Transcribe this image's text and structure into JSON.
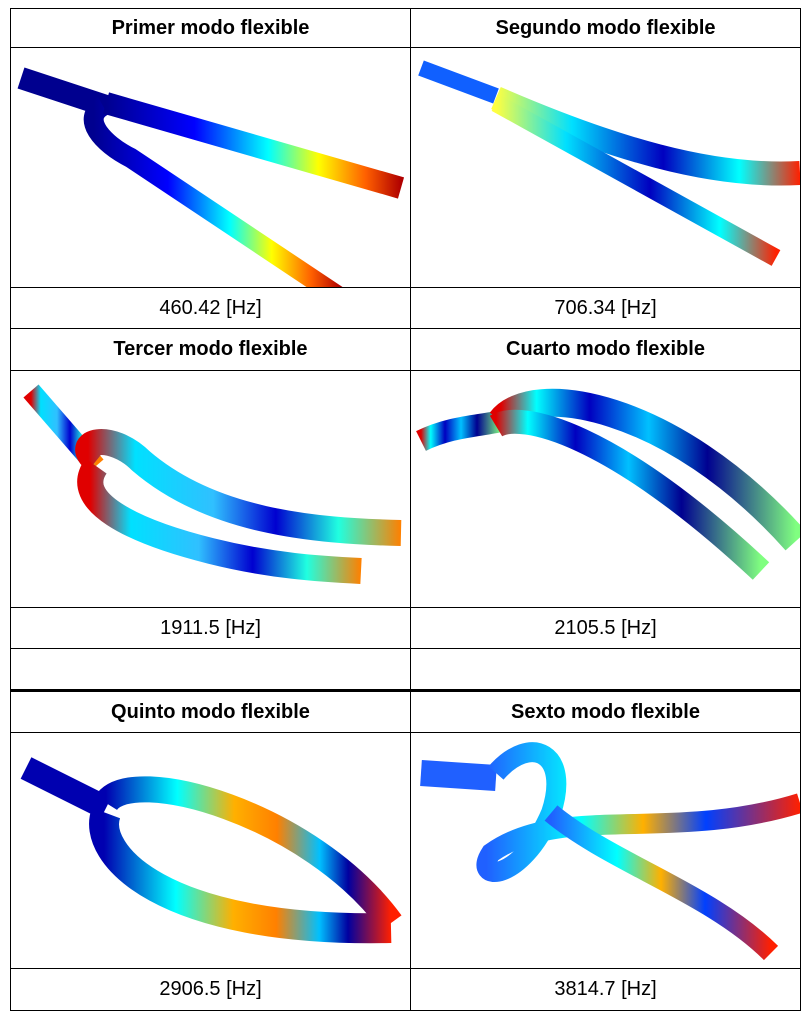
{
  "modes": [
    {
      "title": "Primer modo flexible",
      "frequency": "460.42 [Hz]"
    },
    {
      "title": "Segundo modo flexible",
      "frequency": "706.34 [Hz]"
    },
    {
      "title": "Tercer modo flexible",
      "frequency": "1911.5 [Hz]"
    },
    {
      "title": "Cuarto modo flexible",
      "frequency": "2105.5 [Hz]"
    },
    {
      "title": "Quinto modo flexible",
      "frequency": "2906.5 [Hz]"
    },
    {
      "title": "Sexto modo flexible",
      "frequency": "3814.7 [Hz]"
    }
  ]
}
